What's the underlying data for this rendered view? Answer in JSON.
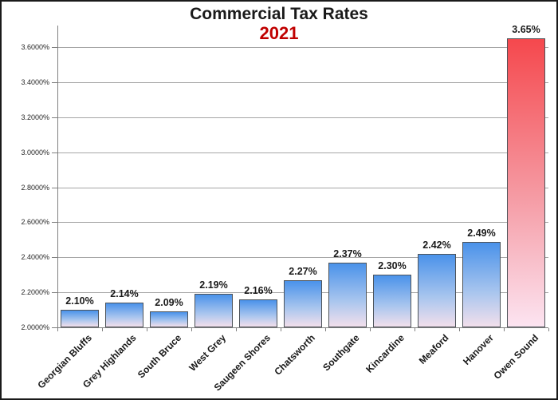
{
  "chart_data": {
    "type": "bar",
    "title": "Commercial Tax Rates",
    "subtitle": "2021",
    "categories": [
      "Georgian Bluffs",
      "Grey Highlands",
      "South Bruce",
      "West Grey",
      "Saugeen Shores",
      "Chatsworth",
      "Southgate",
      "Kincardine",
      "Meaford",
      "Hanover",
      "Owen Sound"
    ],
    "values": [
      2.1,
      2.14,
      2.09,
      2.19,
      2.16,
      2.27,
      2.37,
      2.3,
      2.42,
      2.49,
      3.65
    ],
    "value_labels": [
      "2.10%",
      "2.14%",
      "2.09%",
      "2.19%",
      "2.16%",
      "2.27%",
      "2.37%",
      "2.30%",
      "2.42%",
      "2.49%",
      "3.65%"
    ],
    "highlight_category": "Owen Sound",
    "xlabel": "",
    "ylabel": "",
    "ylim": [
      2.0,
      3.6
    ],
    "ytick_step": 0.2,
    "ytick_labels": [
      "2.0000%",
      "2.2000%",
      "2.4000%",
      "2.6000%",
      "2.8000%",
      "3.0000%",
      "3.2000%",
      "3.4000%",
      "3.6000%"
    ],
    "grid": true,
    "legend": false
  },
  "colors": {
    "title": "#1a1a1a",
    "subtitle": "#c00000",
    "bar_blue_top": "#4a92ea",
    "bar_blue_mid": "#aac6ee",
    "bar_blue_bottom": "#f2dfec",
    "bar_red_top": "#f5484d",
    "bar_red_mid": "#f59ba4",
    "bar_red_bottom": "#fce4f1",
    "bar_border": "#4d5359",
    "gridline": "#a6a6a6",
    "axis": "#808080"
  }
}
